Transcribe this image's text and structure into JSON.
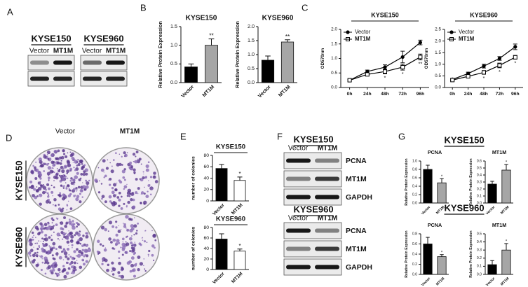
{
  "panels": {
    "A": {
      "letter": "A",
      "blots": [
        {
          "cell_line": "KYSE150",
          "lanes": [
            "Vector",
            "MT1M"
          ]
        },
        {
          "cell_line": "KYSE960",
          "lanes": [
            "Vector",
            "MT1M"
          ]
        }
      ]
    },
    "B": {
      "letter": "B"
    },
    "C": {
      "letter": "C"
    },
    "D": {
      "letter": "D",
      "columns": [
        "Vector",
        "MT1M"
      ],
      "rows": [
        "KYSE150",
        "KYSE960"
      ]
    },
    "E": {
      "letter": "E"
    },
    "F": {
      "letter": "F",
      "groups": [
        {
          "cell_line": "KYSE150",
          "lanes": [
            "Vector",
            "MT1M"
          ],
          "bands": [
            "PCNA",
            "MT1M",
            "GAPDH"
          ]
        },
        {
          "cell_line": "KYSE960",
          "lanes": [
            "Vector",
            "MT1M"
          ],
          "bands": [
            "PCNA",
            "MT1M",
            "GAPDH"
          ]
        }
      ]
    },
    "G": {
      "letter": "G",
      "groups": [
        "KYSE150",
        "KYSE960"
      ]
    }
  },
  "chart_data": [
    {
      "type": "bar",
      "title": "KYSE150",
      "ylabel": "Relative Protein Expression",
      "categories": [
        "Vector",
        "MT1M"
      ],
      "values": [
        0.42,
        1.0
      ],
      "errors": [
        0.08,
        0.17
      ],
      "colors": [
        "#000000",
        "#a6a6a6"
      ],
      "annotation": "**",
      "ylim": [
        0,
        1.5
      ],
      "yticks": [
        {
          "value": 0,
          "label": "0.0"
        },
        0.5,
        {
          "value": 1,
          "label": "1.0"
        },
        1.5
      ]
    },
    {
      "type": "bar",
      "title": "KYSE960",
      "ylabel": "Relative Protein Expression",
      "categories": [
        "Vector",
        "MT1M"
      ],
      "values": [
        0.8,
        1.45
      ],
      "errors": [
        0.15,
        0.08
      ],
      "colors": [
        "#000000",
        "#a6a6a6"
      ],
      "annotation": "**",
      "ylim": [
        0,
        2
      ],
      "yticks": [
        {
          "value": 0,
          "label": "0.0"
        },
        0.5,
        {
          "value": 1,
          "label": "1.0"
        },
        1.5,
        {
          "value": 2,
          "label": "2.0"
        }
      ]
    },
    {
      "type": "line",
      "title": "KYSE150",
      "ylabel": "OD570nm",
      "categories": [
        "0h",
        "24h",
        "48h",
        "72h",
        "96h"
      ],
      "series": [
        {
          "name": "Vector",
          "color": "#000000",
          "marker": "circle",
          "values": [
            0.25,
            0.55,
            0.7,
            1.05,
            1.55
          ],
          "errors": [
            0.03,
            0.05,
            0.08,
            0.2,
            0.08
          ]
        },
        {
          "name": "MT1M",
          "color": "#000000",
          "marker": "square",
          "values": [
            0.25,
            0.45,
            0.55,
            0.7,
            1.05
          ],
          "errors": [
            0.03,
            0.05,
            0.08,
            0.1,
            0.1
          ]
        }
      ],
      "annotations": [
        "*",
        "*",
        "**"
      ],
      "ylim": [
        0,
        2
      ],
      "yticks": [
        {
          "value": 0,
          "label": "0.0"
        },
        0.5,
        {
          "value": 1,
          "label": "1.0"
        },
        1.5,
        {
          "value": 2,
          "label": "2.0"
        }
      ]
    },
    {
      "type": "line",
      "title": "KYSE960",
      "ylabel": "OD570nm",
      "categories": [
        "0h",
        "24h",
        "48h",
        "72h",
        "96h"
      ],
      "series": [
        {
          "name": "Vector",
          "color": "#000000",
          "marker": "circle",
          "values": [
            0.35,
            0.6,
            0.92,
            1.25,
            1.75
          ],
          "errors": [
            0.04,
            0.06,
            0.08,
            0.08,
            0.12
          ]
        },
        {
          "name": "MT1M",
          "color": "#000000",
          "marker": "square",
          "values": [
            0.32,
            0.48,
            0.65,
            0.95,
            1.3
          ],
          "errors": [
            0.04,
            0.06,
            0.08,
            0.1,
            0.08
          ]
        }
      ],
      "annotations": [
        "*",
        "*",
        "*"
      ],
      "ylim": [
        0,
        2.5
      ],
      "yticks": [
        {
          "value": 0,
          "label": "0.0"
        },
        0.5,
        {
          "value": 1,
          "label": "1.0"
        },
        1.5,
        {
          "value": 2,
          "label": "2.0"
        },
        2.5
      ]
    },
    {
      "type": "bar",
      "title": "KYSE150",
      "ylabel": "number of colonies",
      "categories": [
        "Vector",
        "MT1M"
      ],
      "values": [
        57,
        36
      ],
      "errors": [
        7,
        6
      ],
      "colors": [
        "#000000",
        "#ffffff"
      ],
      "annotation": "*",
      "ylim": [
        0,
        80
      ],
      "yticks": [
        0,
        20,
        40,
        60,
        80
      ]
    },
    {
      "type": "bar",
      "title": "KYSE960",
      "ylabel": "number of colonies",
      "categories": [
        "Vector",
        "MT1M"
      ],
      "values": [
        58,
        35
      ],
      "errors": [
        10,
        4
      ],
      "colors": [
        "#000000",
        "#ffffff"
      ],
      "annotation": "*",
      "ylim": [
        0,
        80
      ],
      "yticks": [
        0,
        20,
        40,
        60,
        80
      ]
    },
    {
      "type": "bar",
      "title": "PCNA",
      "ylabel": "Relative Protein Expression",
      "categories": [
        "Vector",
        "MT1M"
      ],
      "values": [
        0.8,
        0.48
      ],
      "errors": [
        0.1,
        0.1
      ],
      "colors": [
        "#000000",
        "#a6a6a6"
      ],
      "annotation": "*",
      "ylim": [
        0,
        1
      ],
      "yticks": [
        {
          "value": 0,
          "label": "0.0"
        },
        0.2,
        0.4,
        0.6,
        0.8,
        {
          "value": 1,
          "label": "1.0"
        }
      ]
    },
    {
      "type": "bar",
      "title": "MT1M",
      "ylabel": "Relative Protein Expression",
      "categories": [
        "Vector",
        "MT1M"
      ],
      "values": [
        0.27,
        0.47
      ],
      "errors": [
        0.04,
        0.08
      ],
      "colors": [
        "#000000",
        "#a6a6a6"
      ],
      "annotation": "*",
      "ylim": [
        0,
        0.6
      ],
      "yticks": [
        {
          "value": 0,
          "label": "0.0"
        },
        0.1,
        0.2,
        0.3,
        0.4,
        0.5,
        0.6
      ]
    },
    {
      "type": "bar",
      "title": "PCNA",
      "ylabel": "Relative Protein Expression",
      "categories": [
        "Vector",
        "MT1M"
      ],
      "values": [
        0.6,
        0.35
      ],
      "errors": [
        0.13,
        0.04
      ],
      "colors": [
        "#000000",
        "#a6a6a6"
      ],
      "annotation": "*",
      "ylim": [
        0,
        0.8
      ],
      "yticks": [
        {
          "value": 0,
          "label": "0.0"
        },
        0.2,
        0.4,
        0.6,
        0.8
      ]
    },
    {
      "type": "bar",
      "title": "MT1M",
      "ylabel": "Relative Protein Expression",
      "categories": [
        "Vector",
        "MT1M"
      ],
      "values": [
        0.12,
        0.3
      ],
      "errors": [
        0.05,
        0.08
      ],
      "colors": [
        "#000000",
        "#a6a6a6"
      ],
      "annotation": "*",
      "ylim": [
        0,
        0.5
      ],
      "yticks": [
        {
          "value": 0,
          "label": "0.0"
        },
        0.1,
        0.2,
        0.3,
        0.4,
        0.5
      ]
    }
  ]
}
